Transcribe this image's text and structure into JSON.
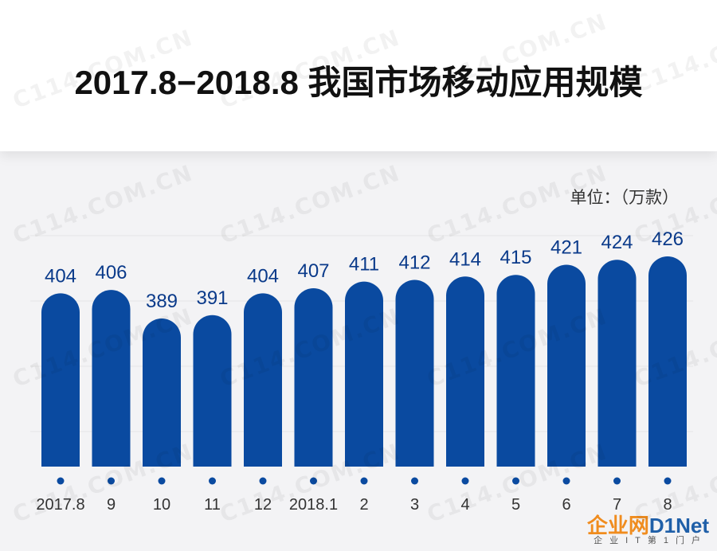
{
  "title": "2017.8−2018.8 我国市场移动应用规模",
  "unit_label": "单位：（万款）",
  "watermark_text": "C114.COM.CN",
  "logo": {
    "cn": "企业网",
    "en": "D1Net",
    "sub": "企业IT第1门户"
  },
  "colors": {
    "bar": "#0a4aa0",
    "label": "#0a3a8a",
    "axis_text": "#333333",
    "grid": "#e6e6e6"
  },
  "chart_data": {
    "type": "bar",
    "categories": [
      "2017.8",
      "9",
      "10",
      "11",
      "12",
      "2018.1",
      "2",
      "3",
      "4",
      "5",
      "6",
      "7",
      "8"
    ],
    "values": [
      404,
      406,
      389,
      391,
      404,
      407,
      411,
      412,
      414,
      415,
      421,
      424,
      426
    ],
    "data_labels": [
      "404",
      "406",
      "389",
      "391",
      "404",
      "407",
      "411",
      "412",
      "414",
      "415",
      "421",
      "424",
      "426"
    ],
    "title": "2017.8−2018.8 我国市场移动应用规模",
    "xlabel": "",
    "ylabel": "单位：（万款）",
    "grid": true,
    "legend": "none"
  }
}
